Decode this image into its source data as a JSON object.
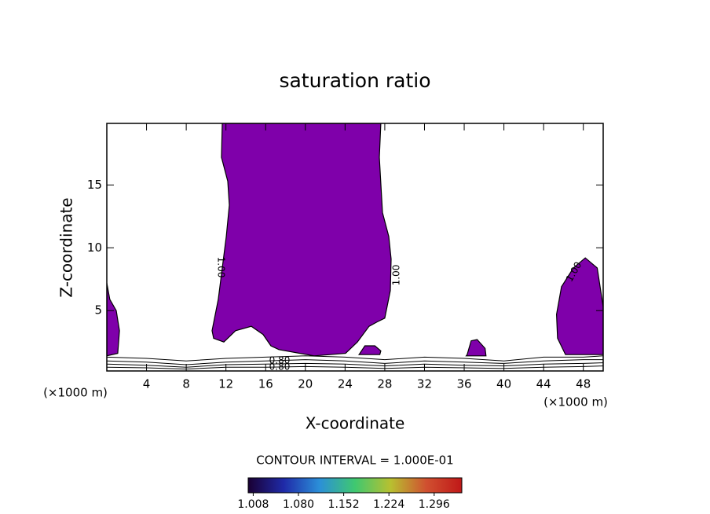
{
  "chart_data": {
    "type": "contour",
    "title": "saturation ratio",
    "x_label": "X-coordinate",
    "y_label": "Z-coordinate",
    "x_unit": "(×1000 m)",
    "x_unit_right": "(×1000 m)",
    "contour_interval": "CONTOUR INTERVAL = 1.000E-01",
    "xlim": [
      0,
      50
    ],
    "ylim": [
      0.2,
      19.9
    ],
    "xticks": [
      4,
      8,
      12,
      16,
      20,
      24,
      28,
      32,
      36,
      40,
      44,
      48
    ],
    "yticks": [
      5,
      10,
      15
    ],
    "grid": false,
    "fill_color": "#7f00aa",
    "line_color": "#000000",
    "regions": [
      {
        "x": [
          11.63,
          11.55,
          12.18,
          12.34,
          12.03,
          11.63,
          11.23,
          10.6,
          10.76,
          11.79,
          12.97,
          14.56,
          15.74,
          16.53,
          17.33,
          20.89,
          24.05,
          25.24,
          26.42,
          27.22,
          28.0,
          28.56,
          28.64,
          28.4,
          27.77,
          27.45,
          27.6
        ],
        "y": [
          19.9,
          17.2,
          15.3,
          13.4,
          10.9,
          8.4,
          5.9,
          3.4,
          2.8,
          2.5,
          3.4,
          3.75,
          3.1,
          2.2,
          1.9,
          1.4,
          1.6,
          2.5,
          3.75,
          4.1,
          4.4,
          6.6,
          9.1,
          10.9,
          12.8,
          17.2,
          19.9
        ]
      },
      {
        "x": [
          50,
          49.4,
          48.2,
          47.0,
          45.8,
          45.3,
          45.4,
          46.2,
          50
        ],
        "y": [
          5.3,
          8.4,
          9.2,
          8.4,
          6.9,
          4.7,
          2.8,
          1.5,
          1.5
        ]
      },
      {
        "x": [
          0,
          0.3,
          0.95,
          1.27,
          1.1,
          0
        ],
        "y": [
          7.2,
          5.9,
          5.0,
          3.4,
          1.6,
          1.4
        ]
      },
      {
        "x": [
          25.4,
          26.0,
          27.0,
          27.6,
          27.5,
          25.5
        ],
        "y": [
          1.5,
          2.2,
          2.2,
          1.8,
          1.5,
          1.5
        ]
      },
      {
        "x": [
          36.3,
          36.7,
          37.3,
          38.1,
          38.2,
          36.2
        ],
        "y": [
          1.5,
          2.6,
          2.7,
          2.0,
          1.4,
          1.4
        ]
      }
    ],
    "contour_lines": [
      {
        "x": [
          0,
          4,
          8,
          12,
          16,
          20,
          24,
          28,
          32,
          36,
          40,
          44,
          48,
          50
        ],
        "y": [
          1.3,
          1.2,
          1.0,
          1.2,
          1.3,
          1.4,
          1.3,
          1.1,
          1.3,
          1.2,
          1.0,
          1.3,
          1.3,
          1.4
        ]
      },
      {
        "x": [
          0,
          4,
          8,
          12,
          16,
          20,
          24,
          28,
          32,
          36,
          40,
          44,
          48,
          50
        ],
        "y": [
          1.0,
          0.9,
          0.7,
          0.9,
          1.0,
          1.1,
          1.0,
          0.8,
          1.0,
          0.9,
          0.8,
          1.0,
          1.1,
          1.1
        ]
      },
      {
        "x": [
          0,
          4,
          8,
          12,
          16,
          20,
          24,
          28,
          32,
          36,
          40,
          44,
          48,
          50
        ],
        "y": [
          0.75,
          0.65,
          0.5,
          0.7,
          0.75,
          0.8,
          0.75,
          0.6,
          0.75,
          0.65,
          0.6,
          0.75,
          0.8,
          0.85
        ]
      },
      {
        "x": [
          0,
          4,
          8,
          12,
          16,
          20,
          24,
          28,
          32,
          36,
          40,
          44,
          48,
          50
        ],
        "y": [
          0.5,
          0.45,
          0.35,
          0.5,
          0.5,
          0.55,
          0.5,
          0.4,
          0.5,
          0.45,
          0.4,
          0.5,
          0.55,
          0.6
        ]
      }
    ],
    "contour_labels": [
      "1.00",
      "1.00",
      "1.00",
      "0.80",
      "0.80"
    ],
    "colorbar": {
      "clim": [
        1.0,
        1.34
      ],
      "colors": [
        "#1a0033",
        "#1f2aa8",
        "#2b8fd8",
        "#3fc870",
        "#b8c030",
        "#d05030",
        "#c01818"
      ],
      "ticks": [
        1.008,
        {
          "value": 1.08,
          "label": "1.080"
        },
        1.152,
        1.224,
        1.296
      ]
    }
  }
}
